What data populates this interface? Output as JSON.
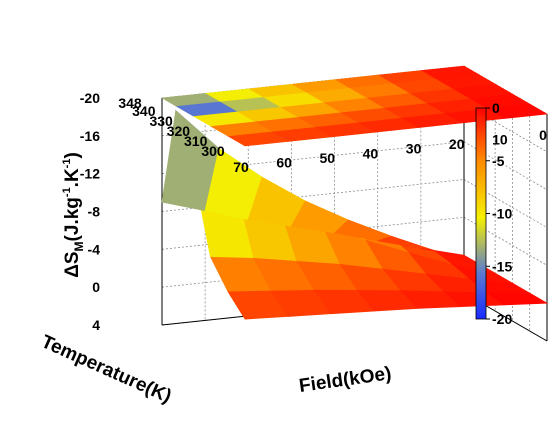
{
  "chart_data": {
    "type": "surface3d",
    "title": "",
    "zlabel_main": "ΔS",
    "zlabel_sub": "M",
    "zlabel_unit_parts": [
      "(J.kg",
      "-1",
      ".K",
      "-1",
      ")"
    ],
    "xlabel": "Temperature(K)",
    "ylabel": "Field(kOe)",
    "x_ticks": [
      "348",
      "340",
      "330",
      "320",
      "310",
      "300"
    ],
    "y_ticks": [
      "70",
      "60",
      "50",
      "40",
      "30",
      "20",
      "10",
      "0"
    ],
    "z_ticks": [
      "4",
      "0",
      "-4",
      "-8",
      "-12",
      "-16",
      "-20"
    ],
    "colorbar_ticks": [
      "0",
      "-5",
      "-10",
      "-15",
      "-20"
    ],
    "xlim": [
      300,
      348
    ],
    "ylim": [
      0,
      70
    ],
    "zlim": [
      -20,
      4
    ],
    "clim": [
      -20,
      0
    ],
    "colormap": [
      "#1a2bff",
      "#5c7bd0",
      "#f5f000",
      "#ff8a00",
      "#ff0000"
    ],
    "grid": true,
    "colorbar": "right",
    "projection_on_floor": true,
    "surface": {
      "temperature": [
        300,
        310,
        320,
        330,
        340,
        348
      ],
      "field": [
        0,
        10,
        20,
        30,
        40,
        50,
        60,
        70
      ],
      "deltaS": [
        [
          0.0,
          -0.3,
          -0.6,
          -0.9,
          -1.1,
          -1.3,
          -1.5,
          -1.7
        ],
        [
          0.0,
          -0.6,
          -1.2,
          -1.8,
          -2.3,
          -2.8,
          -3.2,
          -3.6
        ],
        [
          0.0,
          -1.0,
          -2.0,
          -3.0,
          -4.0,
          -4.8,
          -5.6,
          -6.2
        ],
        [
          0.0,
          -1.5,
          -3.2,
          -5.0,
          -7.0,
          -9.5,
          -12.0,
          -14.5
        ],
        [
          0.0,
          -1.8,
          -3.8,
          -6.0,
          -8.5,
          -11.5,
          -15.0,
          -19.5
        ],
        [
          0.0,
          -1.2,
          -2.5,
          -3.8,
          -5.0,
          -6.2,
          -7.6,
          -9.0
        ]
      ]
    }
  }
}
